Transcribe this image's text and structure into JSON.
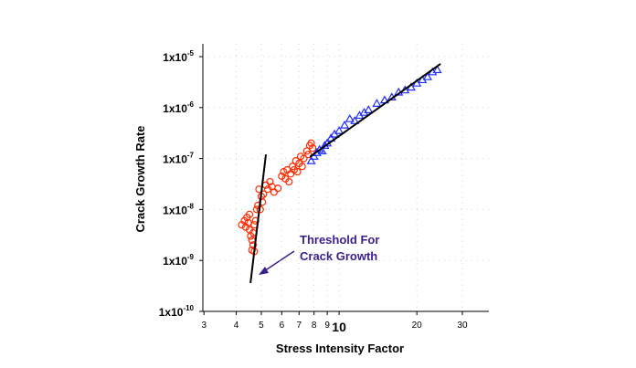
{
  "chart_data": {
    "type": "scatter",
    "xlabel": "Stress Intensity Factor",
    "ylabel": "Crack Growth Rate",
    "annotation": [
      "Threshold For",
      "Crack Growth"
    ],
    "xscale": "log",
    "yscale": "log",
    "grid": true,
    "xlim": [
      2.97,
      38
    ],
    "ylim": [
      1e-10,
      1e-05
    ],
    "xticks": [
      3,
      4,
      5,
      6,
      7,
      8,
      9,
      10,
      20,
      30
    ],
    "yticks": [
      {
        "value": 1e-10,
        "label": "1x10-10"
      },
      {
        "value": 1e-09,
        "label": "1x10-9"
      },
      {
        "value": 1e-08,
        "label": "1x10-8"
      },
      {
        "value": 1e-07,
        "label": "1x10-7"
      },
      {
        "value": 1e-06,
        "label": "1x10-6"
      },
      {
        "value": 1e-05,
        "label": "1x10-5"
      }
    ],
    "series": [
      {
        "mode": "markers",
        "marker": "circle",
        "color": "#ff2a00",
        "x": [
          4.2,
          4.3,
          4.35,
          4.4,
          4.45,
          4.5,
          4.5,
          4.55,
          4.6,
          4.6,
          4.65,
          4.65,
          4.7,
          4.7,
          4.75,
          4.8,
          4.85,
          4.9,
          4.95,
          5.0,
          5.05,
          5.1,
          5.2,
          5.3,
          5.4,
          5.5,
          5.6,
          5.8,
          6.0,
          6.1,
          6.2,
          6.3,
          6.4,
          6.5,
          6.6,
          6.7,
          6.8,
          6.9,
          7.0,
          7.1,
          7.2,
          7.3,
          7.5,
          7.6,
          7.7,
          7.8,
          7.9
        ],
        "values": [
          5e-09,
          6e-09,
          4.5e-09,
          7e-09,
          5.5e-09,
          8e-09,
          4e-09,
          3e-09,
          2.5e-09,
          1.6e-09,
          2e-09,
          3.5e-09,
          5e-09,
          1.5e-09,
          6e-09,
          1e-08,
          1.2e-08,
          2.5e-08,
          1e-08,
          1.8e-08,
          1.4e-08,
          2e-08,
          3e-08,
          2.5e-08,
          3.5e-08,
          2.8e-08,
          2.2e-08,
          2.6e-08,
          4.5e-08,
          5.5e-08,
          4e-08,
          6e-08,
          3.5e-08,
          5e-08,
          7e-08,
          6e-08,
          9e-08,
          5.5e-08,
          8e-08,
          1.1e-07,
          7e-08,
          1e-07,
          1.4e-07,
          1.2e-07,
          1.8e-07,
          2e-07,
          1.6e-07
        ]
      },
      {
        "mode": "markers",
        "marker": "triangle",
        "color": "#1f2bff",
        "x": [
          7.8,
          8.0,
          8.2,
          8.4,
          8.6,
          8.8,
          9.0,
          9.3,
          9.6,
          10,
          10.5,
          11,
          11.5,
          12,
          12.5,
          13,
          14,
          15,
          16,
          17,
          18,
          19,
          20,
          21,
          22,
          23,
          24
        ],
        "values": [
          9e-08,
          1.1e-07,
          1.3e-07,
          1.5e-07,
          1.4e-07,
          1.8e-07,
          2e-07,
          2.5e-07,
          3e-07,
          3.5e-07,
          4.5e-07,
          6e-07,
          5.5e-07,
          7e-07,
          8e-07,
          9e-07,
          1.2e-06,
          1.4e-06,
          1.6e-06,
          2e-06,
          2.2e-06,
          2.5e-06,
          3e-06,
          3.5e-06,
          4e-06,
          5e-06,
          5.5e-06
        ]
      },
      {
        "mode": "line",
        "color": "#000000",
        "x": [
          4.54,
          5.21
        ],
        "values": [
          3.6e-10,
          1.2e-07
        ]
      },
      {
        "mode": "line",
        "color": "#000000",
        "x": [
          7.71,
          24.7
        ],
        "values": [
          1.08e-07,
          7.2e-06
        ]
      }
    ]
  }
}
